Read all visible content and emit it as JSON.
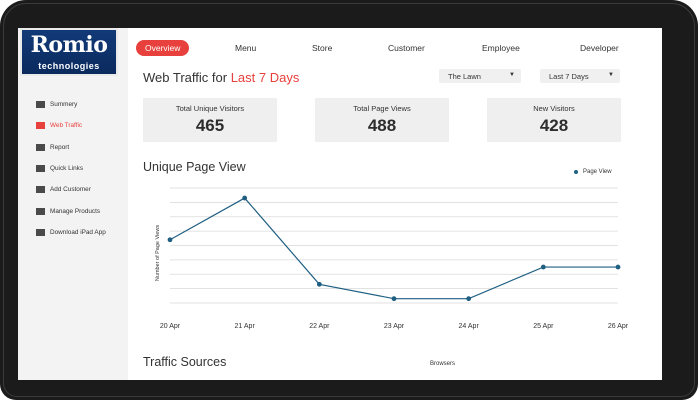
{
  "logo": {
    "main": "Romio",
    "sub": "technologies"
  },
  "sidebar": {
    "items": [
      {
        "label": "Summery",
        "active": false
      },
      {
        "label": "Web Traffic",
        "active": true
      },
      {
        "label": "Report",
        "active": false
      },
      {
        "label": "Quick Links",
        "active": false
      },
      {
        "label": "Add Customer",
        "active": false
      },
      {
        "label": "Manage Products",
        "active": false
      },
      {
        "label": "Download iPad App",
        "active": false
      }
    ]
  },
  "topnav": {
    "tabs": [
      "Overview",
      "Menu",
      "Store",
      "Customer",
      "Employee",
      "Developer"
    ],
    "active": "Overview"
  },
  "header": {
    "title_prefix": "Web Traffic for",
    "title_accent": "Last 7 Days",
    "location_select": "The Lawn",
    "range_select": "Last 7 Days"
  },
  "stats": [
    {
      "label": "Total Unique Visitors",
      "value": "465"
    },
    {
      "label": "Total Page Views",
      "value": "488"
    },
    {
      "label": "New Visitors",
      "value": "428"
    }
  ],
  "chart_title": "Unique Page View",
  "chart_data": {
    "type": "line",
    "categories": [
      "20 Apr",
      "21 Apr",
      "22 Apr",
      "23 Apr",
      "24 Apr",
      "25 Apr",
      "26 Apr"
    ],
    "series": [
      {
        "name": "Page View",
        "values": [
          4.4,
          7.3,
          1.3,
          0.3,
          0.3,
          2.5,
          2.5
        ]
      }
    ],
    "ylabel": "Number of Page Views",
    "ylim": [
      0,
      8
    ],
    "grid": true,
    "legend": "top-right",
    "color": "#1f5f82"
  },
  "traffic": {
    "title": "Traffic Sources",
    "browsers_label": "Browsers"
  },
  "colors": {
    "accent": "#e8403c",
    "line": "#1f5f82"
  }
}
